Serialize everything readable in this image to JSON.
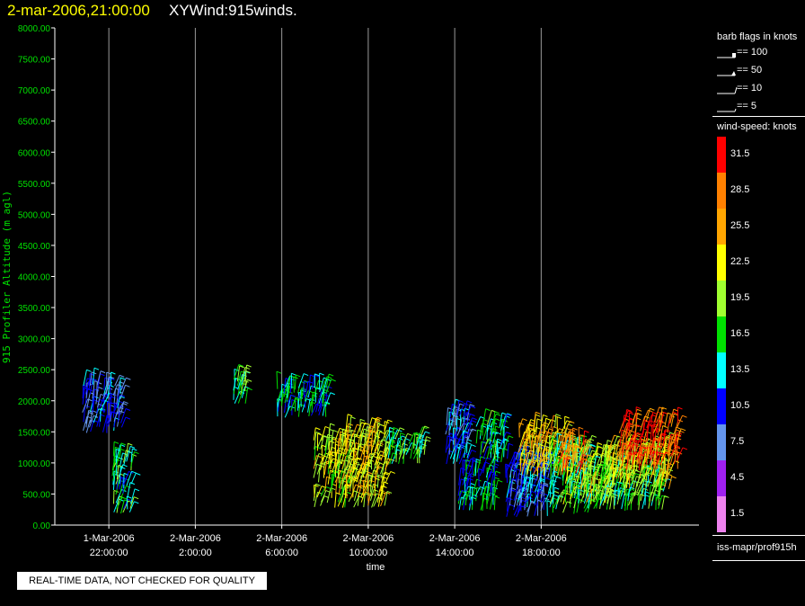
{
  "header": {
    "timestamp": "2-mar-2006,21:00:00",
    "title": "XYWind:915winds."
  },
  "warning": "REAL-TIME DATA, NOT CHECKED FOR QUALITY",
  "legend": {
    "barb_title": "barb flags in knots",
    "barbs": [
      {
        "label": "== 100",
        "kind": "flag"
      },
      {
        "label": "== 50",
        "kind": "pennant"
      },
      {
        "label": "== 10",
        "kind": "full"
      },
      {
        "label": "== 5",
        "kind": "half"
      }
    ],
    "speed_title": "wind-speed: knots",
    "speed_bins": [
      {
        "label": "31.5",
        "color": "#ff0000"
      },
      {
        "label": "28.5",
        "color": "#ff8000"
      },
      {
        "label": "25.5",
        "color": "#ffa500"
      },
      {
        "label": "22.5",
        "color": "#ffff00"
      },
      {
        "label": "19.5",
        "color": "#a0ff30"
      },
      {
        "label": "16.5",
        "color": "#00e000"
      },
      {
        "label": "13.5",
        "color": "#00ffff"
      },
      {
        "label": "10.5",
        "color": "#0000ff"
      },
      {
        "label": "7.5",
        "color": "#6495ed"
      },
      {
        "label": "4.5",
        "color": "#a020f0"
      },
      {
        "label": "1.5",
        "color": "#ee82ee"
      }
    ],
    "source": "iss-mapr/prof915h"
  },
  "chart_data": {
    "type": "scatter",
    "title": "XYWind:915winds.",
    "xlabel": "time",
    "ylabel": "915 Profiler Altitude (m agl)",
    "ylim": [
      0,
      8000
    ],
    "yticks": [
      "0.00",
      "500.00",
      "1000.00",
      "1500.00",
      "2000.00",
      "2500.00",
      "3000.00",
      "3500.00",
      "4000.00",
      "4500.00",
      "5000.00",
      "5500.00",
      "6000.00",
      "6500.00",
      "7000.00",
      "7500.00",
      "8000.00"
    ],
    "xlim_hours": [
      -2.5,
      27.3
    ],
    "xticks": [
      {
        "hour": 0,
        "date": "1-Mar-2006",
        "time": "22:00:00"
      },
      {
        "hour": 4,
        "date": "2-Mar-2006",
        "time": "2:00:00"
      },
      {
        "hour": 8,
        "date": "2-Mar-2006",
        "time": "6:00:00"
      },
      {
        "hour": 12,
        "date": "2-Mar-2006",
        "time": "10:00:00"
      },
      {
        "hour": 16,
        "date": "2-Mar-2006",
        "time": "14:00:00"
      },
      {
        "hour": 20,
        "date": "2-Mar-2006",
        "time": "18:00:00"
      }
    ],
    "grid": "vertical",
    "clusters": [
      {
        "t0": -1.2,
        "t1": 0.6,
        "a0": 1500,
        "a1": 2300,
        "speed": 10
      },
      {
        "t0": 0.2,
        "t1": 1.0,
        "a0": 200,
        "a1": 1100,
        "speed": 15
      },
      {
        "t0": 5.8,
        "t1": 6.3,
        "a0": 1950,
        "a1": 2350,
        "speed": 17
      },
      {
        "t0": 7.8,
        "t1": 10.2,
        "a0": 1750,
        "a1": 2200,
        "speed": 14
      },
      {
        "t0": 9.5,
        "t1": 11.2,
        "a0": 300,
        "a1": 1400,
        "speed": 21
      },
      {
        "t0": 11.0,
        "t1": 12.8,
        "a0": 300,
        "a1": 1550,
        "speed": 22
      },
      {
        "t0": 12.8,
        "t1": 14.6,
        "a0": 1000,
        "a1": 1400,
        "speed": 17
      },
      {
        "t0": 15.6,
        "t1": 16.6,
        "a0": 1000,
        "a1": 1750,
        "speed": 11
      },
      {
        "t0": 16.2,
        "t1": 17.8,
        "a0": 250,
        "a1": 900,
        "speed": 14
      },
      {
        "t0": 17.0,
        "t1": 18.4,
        "a0": 1000,
        "a1": 1650,
        "speed": 15
      },
      {
        "t0": 18.4,
        "t1": 20.4,
        "a0": 150,
        "a1": 1100,
        "speed": 10
      },
      {
        "t0": 19.0,
        "t1": 21.2,
        "a0": 800,
        "a1": 1600,
        "speed": 24
      },
      {
        "t0": 20.4,
        "t1": 22.2,
        "a0": 200,
        "a1": 1200,
        "speed": 16
      },
      {
        "t0": 21.0,
        "t1": 23.2,
        "a0": 350,
        "a1": 1100,
        "speed": 21
      },
      {
        "t0": 20.8,
        "t1": 22.0,
        "a0": 850,
        "a1": 1300,
        "speed": 28
      },
      {
        "t0": 22.4,
        "t1": 25.6,
        "a0": 250,
        "a1": 900,
        "speed": 17
      },
      {
        "t0": 23.0,
        "t1": 26.0,
        "a0": 600,
        "a1": 1200,
        "speed": 22
      },
      {
        "t0": 23.6,
        "t1": 26.4,
        "a0": 900,
        "a1": 1650,
        "speed": 30
      }
    ]
  }
}
